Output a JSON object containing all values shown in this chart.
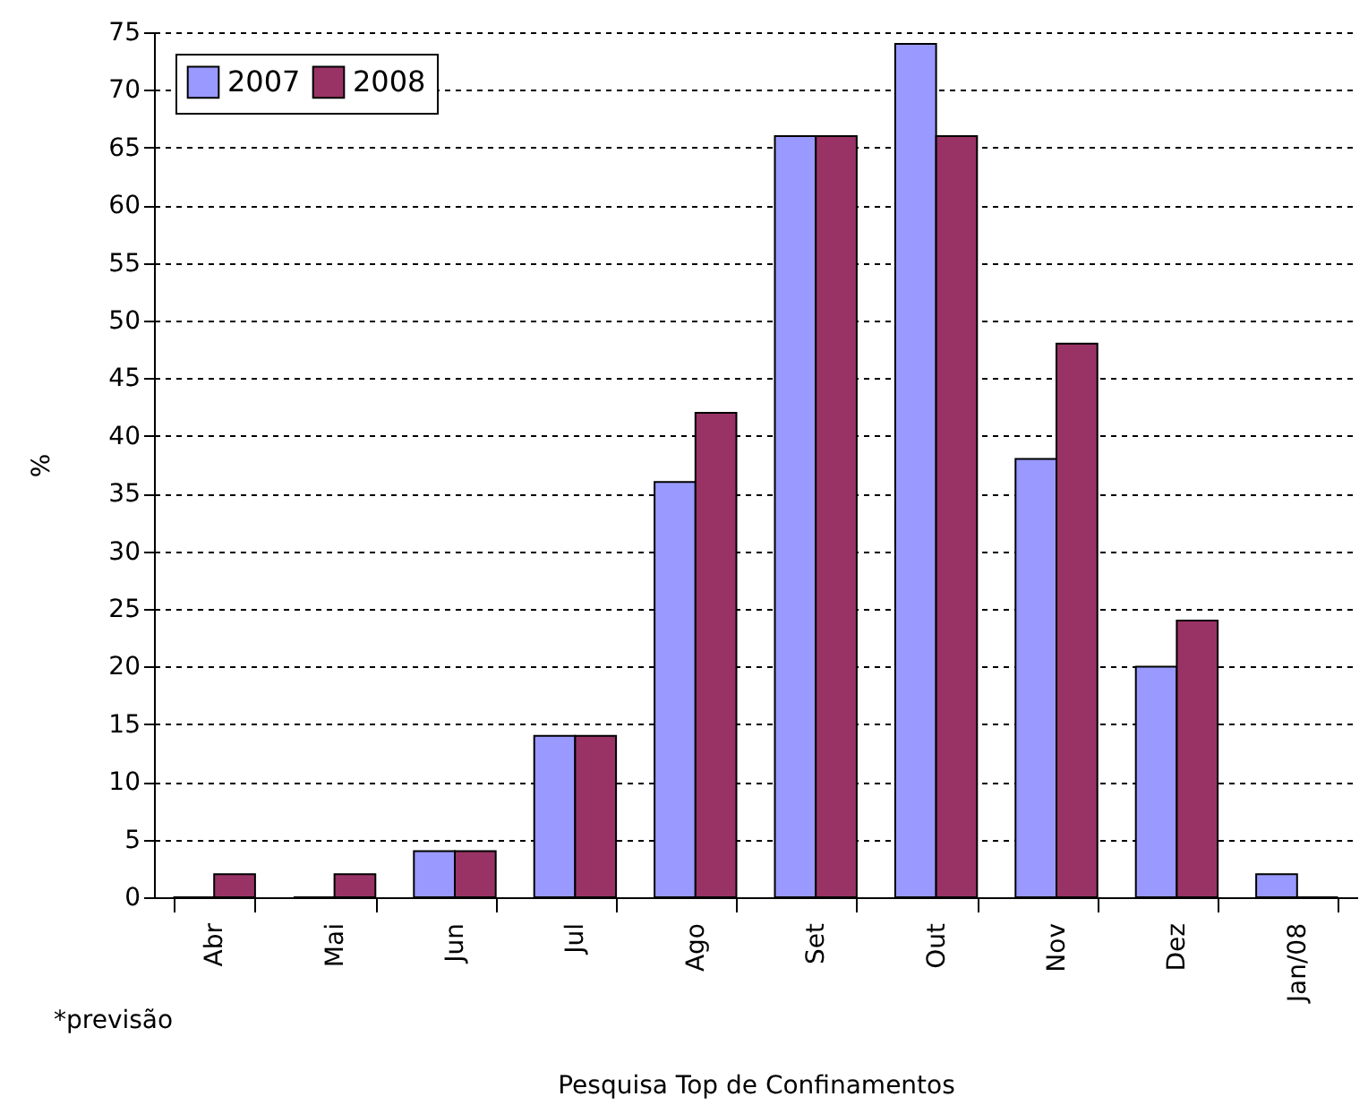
{
  "chart_data": {
    "type": "bar",
    "xlabel": "Pesquisa Top de Confinamentos",
    "ylabel": "%",
    "categories": [
      "Abr",
      "Mai",
      "Jun",
      "Jul",
      "Ago",
      "Set",
      "Out",
      "Nov",
      "Dez",
      "Jan/08"
    ],
    "series": [
      {
        "name": "2007",
        "color": "#9999ff",
        "values": [
          0,
          0,
          4,
          14,
          36,
          66,
          74,
          38,
          20,
          2
        ]
      },
      {
        "name": "2008",
        "color": "#993366",
        "values": [
          2,
          2,
          4,
          14,
          42,
          66,
          66,
          48,
          24,
          0
        ]
      }
    ],
    "ylim": [
      0,
      75
    ],
    "yticks": [
      0,
      5,
      10,
      15,
      20,
      25,
      30,
      35,
      40,
      45,
      50,
      55,
      60,
      65,
      70,
      75
    ],
    "grid": "y",
    "legend": "top left",
    "annotations": [
      "*previsão"
    ]
  }
}
